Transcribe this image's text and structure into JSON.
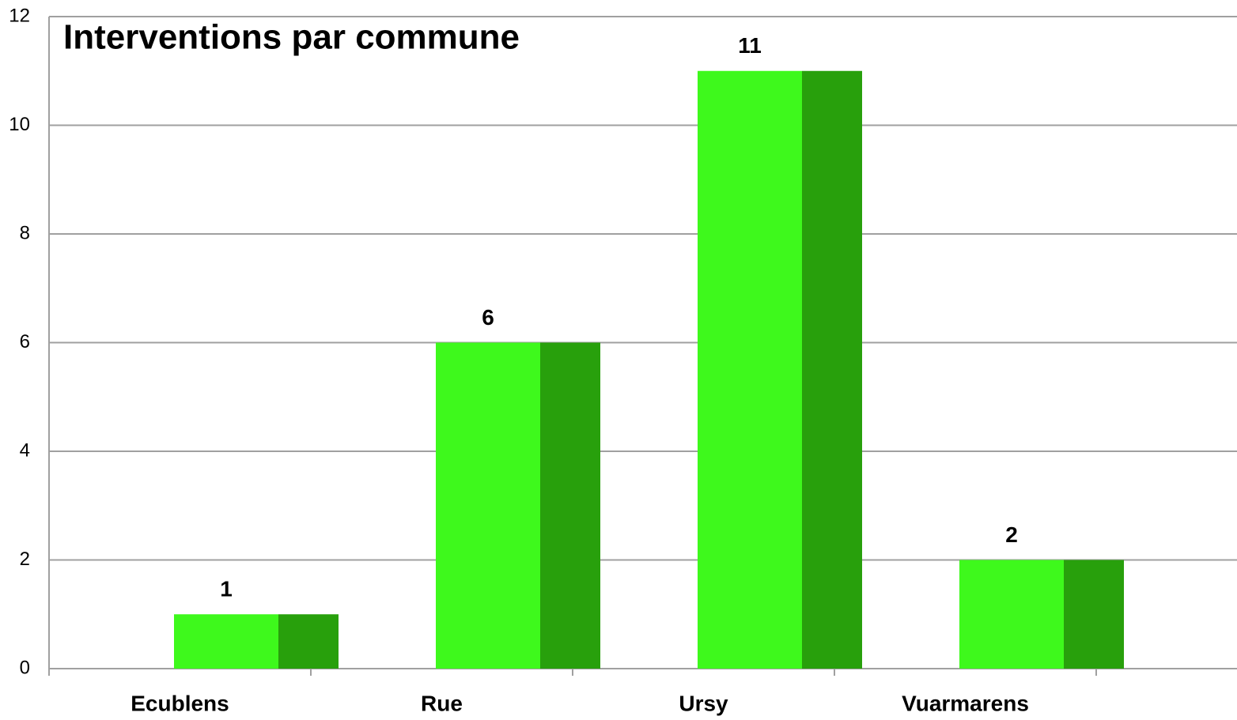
{
  "chart_data": {
    "type": "bar",
    "title": "Interventions par commune",
    "categories": [
      "Ecublens",
      "Rue",
      "Ursy",
      "Vuarmarens"
    ],
    "values": [
      1,
      6,
      11,
      2
    ],
    "color": "#3ef91c",
    "shade_color": "#28a00c",
    "ylim": [
      0,
      12
    ],
    "yticks": [
      0,
      2,
      4,
      6,
      8,
      10,
      12
    ],
    "grid": true
  }
}
